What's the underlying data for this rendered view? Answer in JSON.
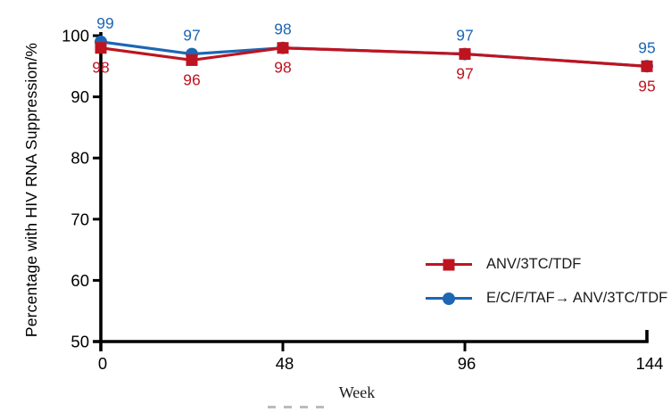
{
  "figure": {
    "background": "#ffffff",
    "axis_color": "#000000"
  },
  "chart_data": {
    "type": "line",
    "title": "",
    "xlabel": "Week",
    "ylabel": "Percentage with HIV RNA Suppression/%",
    "x": [
      0,
      24,
      48,
      96,
      144
    ],
    "x_ticks": [
      0,
      48,
      96,
      144
    ],
    "y_ticks": [
      50,
      60,
      70,
      80,
      90,
      100
    ],
    "xlim": [
      0,
      144
    ],
    "ylim": [
      50,
      100
    ],
    "grid": false,
    "legend_position": "inside lower right",
    "series": [
      {
        "name": "ANV/3TC/TDF",
        "color": "#be1420",
        "marker": "square",
        "values": [
          98,
          96,
          98,
          97,
          95
        ],
        "point_labels": [
          "98",
          "96",
          "98",
          "97",
          "95"
        ],
        "label_side": "below"
      },
      {
        "name": "E/C/F/TAF→ ANV/3TC/TDF",
        "color": "#1d66b4",
        "marker": "circle",
        "values": [
          99,
          97,
          98,
          97,
          95
        ],
        "point_labels": [
          "99",
          "97",
          "98",
          "97",
          "95"
        ],
        "label_side": "above"
      }
    ]
  }
}
